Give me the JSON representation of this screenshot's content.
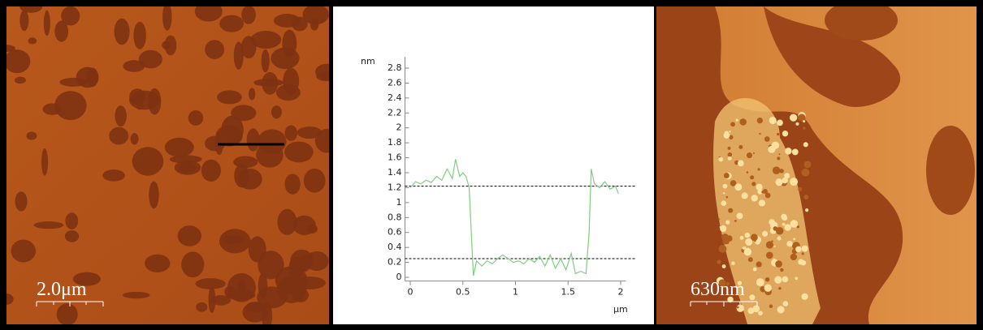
{
  "panels": {
    "left_scale": "2.0μm",
    "right_scale": "630nm"
  },
  "chart_data": {
    "type": "line",
    "x_label": "μm",
    "y_label": "nm",
    "x": [
      0,
      0.05,
      0.1,
      0.15,
      0.2,
      0.25,
      0.3,
      0.35,
      0.4,
      0.43,
      0.47,
      0.5,
      0.53,
      0.56,
      0.58,
      0.6,
      0.63,
      0.68,
      0.73,
      0.78,
      0.83,
      0.88,
      0.93,
      0.98,
      1.03,
      1.08,
      1.13,
      1.18,
      1.23,
      1.28,
      1.33,
      1.38,
      1.43,
      1.48,
      1.53,
      1.57,
      1.62,
      1.67,
      1.7,
      1.72,
      1.75,
      1.8,
      1.85,
      1.9,
      1.95,
      1.98
    ],
    "series": [
      {
        "color": "#7fcf7f",
        "values": [
          1.2,
          1.28,
          1.25,
          1.3,
          1.27,
          1.35,
          1.3,
          1.45,
          1.32,
          1.58,
          1.35,
          1.4,
          1.35,
          1.2,
          0.6,
          0.02,
          0.22,
          0.15,
          0.22,
          0.18,
          0.25,
          0.3,
          0.25,
          0.2,
          0.22,
          0.18,
          0.25,
          0.2,
          0.28,
          0.15,
          0.3,
          0.12,
          0.25,
          0.1,
          0.32,
          0.05,
          0.08,
          0.05,
          0.6,
          1.45,
          1.25,
          1.2,
          1.28,
          1.18,
          1.22,
          1.12
        ]
      }
    ],
    "reference_lines": [
      1.22,
      0.25
    ],
    "xlim": [
      -0.05,
      2.05
    ],
    "xticks": [
      0,
      0.5,
      1,
      1.5,
      2
    ],
    "ylim": [
      -0.05,
      2.95
    ],
    "yticks": [
      0,
      0.2,
      0.4,
      0.6,
      0.8,
      1,
      1.2,
      1.4,
      1.6,
      1.8,
      2,
      2.2,
      2.4,
      2.6,
      2.8
    ]
  }
}
